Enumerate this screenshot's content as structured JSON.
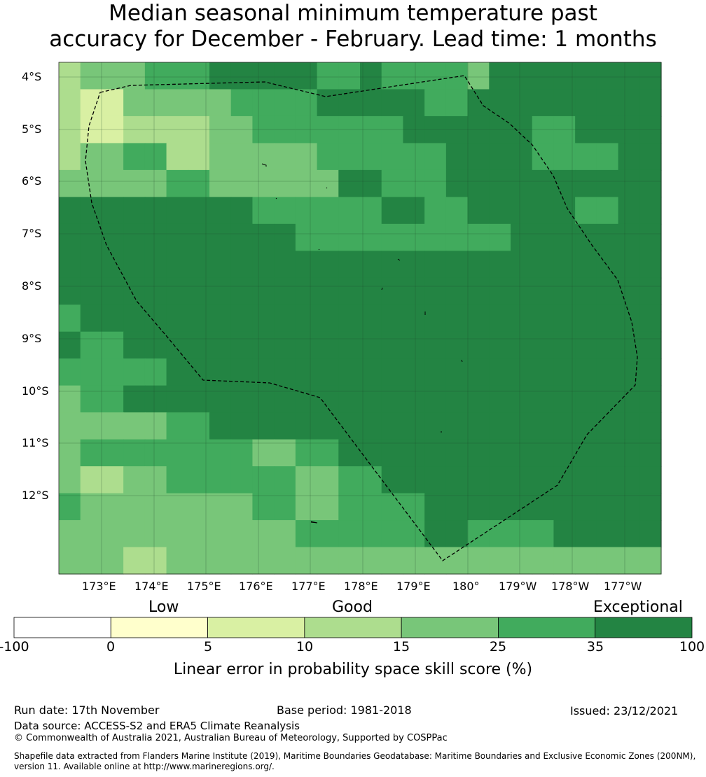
{
  "title": {
    "line1": "Median seasonal minimum temperature past",
    "line2": "accuracy for December - February. Lead time: 1 months"
  },
  "map": {
    "lat_labels": [
      "4°S",
      "5°S",
      "6°S",
      "7°S",
      "8°S",
      "9°S",
      "10°S",
      "11°S",
      "12°S"
    ],
    "lon_labels": [
      "173°E",
      "174°E",
      "175°E",
      "176°E",
      "177°E",
      "178°E",
      "179°E",
      "180°",
      "179°W",
      "178°W",
      "177°W"
    ],
    "eez_boundary": "dashed black line",
    "grid": [
      [
        2,
        3,
        3,
        3,
        4,
        4,
        4,
        5,
        5,
        5,
        5,
        5,
        4,
        4,
        5,
        4,
        4,
        4,
        4,
        3,
        5,
        5,
        5,
        5,
        5,
        5,
        5,
        5
      ],
      [
        2,
        1,
        1,
        3,
        3,
        3,
        3,
        3,
        4,
        4,
        4,
        4,
        5,
        5,
        5,
        5,
        5,
        4,
        4,
        5,
        5,
        5,
        5,
        5,
        5,
        5,
        5,
        5
      ],
      [
        2,
        1,
        1,
        2,
        2,
        2,
        2,
        3,
        3,
        4,
        4,
        4,
        4,
        4,
        4,
        4,
        5,
        5,
        5,
        5,
        5,
        5,
        4,
        4,
        5,
        5,
        5,
        5
      ],
      [
        2,
        3,
        3,
        4,
        4,
        2,
        2,
        3,
        3,
        3,
        3,
        3,
        4,
        4,
        4,
        4,
        4,
        4,
        5,
        5,
        5,
        5,
        4,
        4,
        4,
        4,
        5,
        5
      ],
      [
        3,
        3,
        3,
        3,
        3,
        4,
        4,
        3,
        3,
        3,
        3,
        3,
        3,
        5,
        5,
        4,
        4,
        4,
        5,
        5,
        5,
        5,
        5,
        5,
        5,
        5,
        5,
        5
      ],
      [
        5,
        5,
        5,
        5,
        5,
        5,
        5,
        5,
        5,
        4,
        4,
        4,
        4,
        4,
        4,
        5,
        5,
        4,
        4,
        5,
        5,
        5,
        5,
        5,
        4,
        4,
        5,
        5
      ],
      [
        5,
        5,
        5,
        5,
        5,
        5,
        5,
        5,
        5,
        5,
        5,
        4,
        4,
        4,
        4,
        4,
        4,
        4,
        4,
        4,
        4,
        5,
        5,
        5,
        5,
        5,
        5,
        5
      ],
      [
        5,
        5,
        5,
        5,
        5,
        5,
        5,
        5,
        5,
        5,
        5,
        5,
        5,
        5,
        5,
        5,
        5,
        5,
        5,
        5,
        5,
        5,
        5,
        5,
        5,
        5,
        5,
        5
      ],
      [
        5,
        5,
        5,
        5,
        5,
        5,
        5,
        5,
        5,
        5,
        5,
        5,
        5,
        5,
        5,
        5,
        5,
        5,
        5,
        5,
        5,
        5,
        5,
        5,
        5,
        5,
        5,
        5
      ],
      [
        4,
        5,
        5,
        5,
        5,
        5,
        5,
        5,
        5,
        5,
        5,
        5,
        5,
        5,
        5,
        5,
        5,
        5,
        5,
        5,
        5,
        5,
        5,
        5,
        5,
        5,
        5,
        5
      ],
      [
        5,
        4,
        4,
        5,
        5,
        5,
        5,
        5,
        5,
        5,
        5,
        5,
        5,
        5,
        5,
        5,
        5,
        5,
        5,
        5,
        5,
        5,
        5,
        5,
        5,
        5,
        5,
        5
      ],
      [
        4,
        4,
        4,
        4,
        4,
        5,
        5,
        5,
        5,
        5,
        5,
        5,
        5,
        5,
        5,
        5,
        5,
        5,
        5,
        5,
        5,
        5,
        5,
        5,
        5,
        5,
        5,
        5
      ],
      [
        3,
        4,
        4,
        5,
        5,
        5,
        5,
        5,
        5,
        5,
        5,
        5,
        5,
        5,
        5,
        5,
        5,
        5,
        5,
        5,
        5,
        5,
        5,
        5,
        5,
        5,
        5,
        5
      ],
      [
        3,
        3,
        3,
        3,
        3,
        4,
        4,
        5,
        5,
        5,
        5,
        5,
        5,
        5,
        5,
        5,
        5,
        5,
        5,
        5,
        5,
        5,
        5,
        5,
        5,
        5,
        5,
        5
      ],
      [
        3,
        4,
        4,
        4,
        4,
        4,
        4,
        4,
        4,
        3,
        3,
        4,
        4,
        5,
        5,
        5,
        5,
        5,
        5,
        5,
        5,
        5,
        5,
        5,
        5,
        5,
        5,
        5
      ],
      [
        3,
        2,
        2,
        3,
        3,
        4,
        4,
        4,
        4,
        4,
        4,
        3,
        3,
        4,
        4,
        5,
        5,
        5,
        5,
        5,
        5,
        5,
        5,
        5,
        5,
        5,
        5,
        5
      ],
      [
        4,
        3,
        3,
        3,
        3,
        3,
        3,
        3,
        3,
        4,
        4,
        3,
        3,
        4,
        4,
        4,
        4,
        5,
        5,
        5,
        5,
        5,
        5,
        5,
        5,
        5,
        5,
        5
      ],
      [
        3,
        3,
        3,
        3,
        3,
        3,
        3,
        3,
        3,
        3,
        3,
        4,
        4,
        4,
        4,
        4,
        4,
        5,
        5,
        4,
        4,
        4,
        4,
        5,
        5,
        5,
        5,
        5
      ],
      [
        3,
        3,
        3,
        2,
        2,
        3,
        3,
        3,
        3,
        3,
        3,
        3,
        3,
        3,
        3,
        3,
        3,
        3,
        3,
        3,
        3,
        3,
        3,
        3,
        3,
        3,
        3,
        3
      ]
    ]
  },
  "colorbar": {
    "categories": [
      "Low",
      "Good",
      "Exceptional"
    ],
    "ticks": [
      "-100",
      "0",
      "5",
      "10",
      "15",
      "25",
      "35",
      "100"
    ],
    "colors": [
      "#ffffff",
      "#ffffcc",
      "#d9f0a3",
      "#addd8e",
      "#78c679",
      "#41ab5d",
      "#238443"
    ],
    "label": "Linear error in probability space skill score (%)"
  },
  "footer": {
    "run_date": "Run date: 17th November",
    "base_period": "Base period: 1981-2018",
    "issued": "Issued: 23/12/2021",
    "data_source": "Data source: ACCESS-S2 and ERA5 Climate Reanalysis",
    "copyright": "© Commonwealth of Australia 2021, Australian Bureau of Meteorology, Supported by COSPPac",
    "shapefile_line1": "Shapefile data extracted from Flanders Marine Institute (2019), Maritime Boundaries Geodatabase: Maritime Boundaries and Exclusive Economic Zones (200NM),",
    "shapefile_line2": "version 11. Available online at http://www.marineregions.org/."
  }
}
